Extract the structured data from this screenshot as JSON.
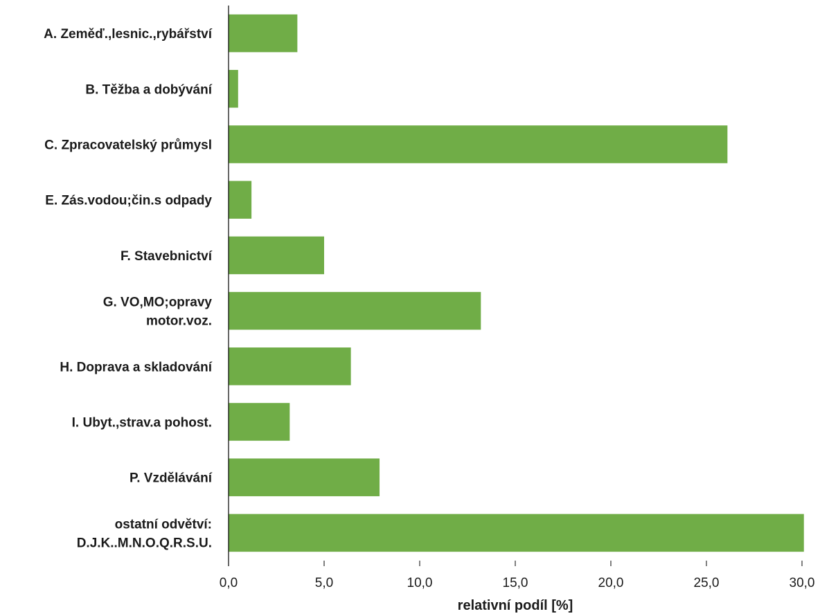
{
  "chart_data": {
    "type": "bar",
    "orientation": "horizontal",
    "categories": [
      [
        "A. Zeměď.,lesnic.,rybářství"
      ],
      [
        "B. Těžba a dobývání"
      ],
      [
        "C. Zpracovatelský průmysl"
      ],
      [
        "E. Zás.vodou;čin.s odpady"
      ],
      [
        "F. Stavebnictví"
      ],
      [
        "G. VO,MO;opravy",
        "motor.voz."
      ],
      [
        "H. Doprava a skladování"
      ],
      [
        "I. Ubyt.,strav.a pohost."
      ],
      [
        "P. Vzdělávání"
      ],
      [
        "ostatní odvětví:",
        "D.J.K..M.N.O.Q.R.S.U."
      ]
    ],
    "values": [
      3.6,
      0.5,
      26.1,
      1.2,
      5.0,
      13.2,
      6.4,
      3.2,
      7.9,
      30.1
    ],
    "xlabel": "relativní podíl [%]",
    "ylabel": "",
    "xlim": [
      0,
      30
    ],
    "ticks": [
      "0,0",
      "5,0",
      "10,0",
      "15,0",
      "20,0",
      "25,0",
      "30,0"
    ],
    "grid": false,
    "legend": "none",
    "bar_color": "#70ad47"
  }
}
